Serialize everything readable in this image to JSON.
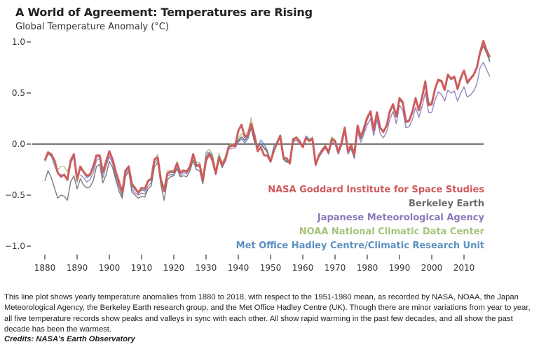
{
  "chart_data": {
    "type": "line",
    "title": "A World of Agreement: Temperatures are Rising",
    "ylabel": "Global Temperature Anomaly (°C)",
    "xlabel": "",
    "xlim": [
      1880,
      2018
    ],
    "ylim": [
      -1.0,
      1.0
    ],
    "yticks": [
      1.0,
      0.5,
      0.0,
      -0.5,
      -1.0
    ],
    "ytick_labels": [
      "1.0",
      "0.5",
      "0.0",
      "−0.5",
      "−1.0"
    ],
    "xticks": [
      1880,
      1890,
      1900,
      1910,
      1920,
      1930,
      1940,
      1950,
      1960,
      1970,
      1980,
      1990,
      2000,
      2010
    ],
    "xtick_labels": [
      "1880",
      "1890",
      "1900",
      "1910",
      "1920",
      "1930",
      "1940",
      "1950",
      "1960",
      "1970",
      "1980",
      "1990",
      "2000",
      "2010"
    ],
    "zero_line": true,
    "grid": false,
    "legend_position": "bottom-right",
    "x_start": 1880,
    "series": [
      {
        "name": "Met Office Hadley Centre/Climatic Research Unit",
        "color": "#5b8fc0",
        "values": [
          -0.17,
          -0.1,
          -0.12,
          -0.21,
          -0.29,
          -0.3,
          -0.31,
          -0.35,
          -0.19,
          -0.12,
          -0.37,
          -0.24,
          -0.28,
          -0.33,
          -0.31,
          -0.24,
          -0.13,
          -0.12,
          -0.29,
          -0.19,
          -0.09,
          -0.16,
          -0.3,
          -0.39,
          -0.48,
          -0.29,
          -0.23,
          -0.41,
          -0.45,
          -0.48,
          -0.45,
          -0.46,
          -0.37,
          -0.35,
          -0.16,
          -0.13,
          -0.36,
          -0.44,
          -0.29,
          -0.28,
          -0.28,
          -0.19,
          -0.29,
          -0.26,
          -0.28,
          -0.22,
          -0.11,
          -0.21,
          -0.21,
          -0.36,
          -0.09,
          -0.08,
          -0.11,
          -0.28,
          -0.12,
          -0.21,
          -0.15,
          -0.03,
          -0.02,
          -0.02,
          0.04,
          0.07,
          0.03,
          0.07,
          0.17,
          0.03,
          -0.03,
          0.04,
          0.0,
          -0.06,
          -0.16,
          -0.02,
          0.02,
          0.09,
          -0.13,
          -0.17,
          -0.15,
          0.05,
          0.06,
          0.02,
          -0.01,
          0.08,
          0.05,
          0.06,
          -0.2,
          -0.11,
          -0.06,
          -0.02,
          -0.08,
          0.05,
          0.03,
          -0.08,
          0.01,
          0.16,
          -0.07,
          -0.01,
          -0.1,
          0.18,
          0.07,
          0.16,
          0.26,
          0.32,
          0.14,
          0.31,
          0.16,
          0.12,
          0.18,
          0.32,
          0.39,
          0.27,
          0.45,
          0.4,
          0.22,
          0.23,
          0.31,
          0.45,
          0.33,
          0.46,
          0.61,
          0.38,
          0.39,
          0.54,
          0.63,
          0.62,
          0.53,
          0.68,
          0.64,
          0.66,
          0.54,
          0.63,
          0.72,
          0.61,
          0.65,
          0.68,
          0.75,
          0.9,
          0.99,
          0.91,
          0.82
        ]
      },
      {
        "name": "NOAA National Climatic Data Center",
        "color": "#a6c27a",
        "values": [
          -0.15,
          -0.09,
          -0.11,
          -0.19,
          -0.25,
          -0.22,
          -0.22,
          -0.27,
          -0.17,
          -0.11,
          -0.35,
          -0.23,
          -0.28,
          -0.31,
          -0.29,
          -0.23,
          -0.12,
          -0.11,
          -0.27,
          -0.17,
          -0.08,
          -0.15,
          -0.29,
          -0.38,
          -0.45,
          -0.27,
          -0.21,
          -0.39,
          -0.43,
          -0.46,
          -0.42,
          -0.44,
          -0.36,
          -0.34,
          -0.15,
          -0.1,
          -0.33,
          -0.42,
          -0.26,
          -0.26,
          -0.26,
          -0.17,
          -0.27,
          -0.25,
          -0.26,
          -0.21,
          -0.09,
          -0.18,
          -0.18,
          -0.32,
          -0.08,
          -0.05,
          -0.1,
          -0.26,
          -0.09,
          -0.18,
          -0.12,
          -0.01,
          0.0,
          -0.01,
          0.06,
          0.1,
          0.09,
          0.12,
          0.26,
          0.08,
          -0.03,
          0.0,
          -0.04,
          -0.07,
          -0.15,
          -0.05,
          0.01,
          0.09,
          -0.13,
          -0.15,
          -0.17,
          0.03,
          0.08,
          0.03,
          -0.02,
          0.06,
          0.04,
          0.07,
          -0.19,
          -0.1,
          -0.05,
          -0.01,
          -0.07,
          0.07,
          0.04,
          -0.07,
          0.02,
          0.17,
          -0.06,
          -0.01,
          -0.09,
          0.17,
          0.06,
          0.17,
          0.27,
          0.33,
          0.14,
          0.31,
          0.16,
          0.12,
          0.19,
          0.34,
          0.4,
          0.29,
          0.45,
          0.42,
          0.23,
          0.24,
          0.32,
          0.46,
          0.35,
          0.48,
          0.63,
          0.4,
          0.42,
          0.54,
          0.63,
          0.62,
          0.54,
          0.68,
          0.64,
          0.66,
          0.54,
          0.64,
          0.72,
          0.61,
          0.65,
          0.68,
          0.75,
          0.91,
          0.99,
          0.92,
          0.8
        ]
      },
      {
        "name": "Japanese Meteorological Agency",
        "color": "#8b78b8",
        "values": [
          null,
          null,
          null,
          null,
          null,
          null,
          null,
          null,
          null,
          null,
          null,
          -0.3,
          -0.33,
          -0.37,
          -0.35,
          -0.28,
          -0.16,
          -0.14,
          -0.33,
          -0.22,
          -0.12,
          -0.19,
          -0.33,
          -0.42,
          -0.51,
          -0.32,
          -0.26,
          -0.44,
          -0.48,
          -0.5,
          -0.48,
          -0.49,
          -0.41,
          -0.38,
          -0.19,
          -0.15,
          -0.38,
          -0.46,
          -0.31,
          -0.3,
          -0.3,
          -0.21,
          -0.31,
          -0.28,
          -0.29,
          -0.24,
          -0.12,
          -0.22,
          -0.22,
          -0.37,
          -0.11,
          -0.09,
          -0.12,
          -0.29,
          -0.14,
          -0.22,
          -0.17,
          -0.05,
          -0.04,
          -0.04,
          0.02,
          0.05,
          0.01,
          0.05,
          0.16,
          0.02,
          -0.04,
          0.01,
          -0.03,
          -0.07,
          -0.17,
          -0.05,
          0.0,
          0.07,
          -0.15,
          -0.18,
          -0.17,
          0.02,
          0.04,
          0.0,
          -0.03,
          0.05,
          0.03,
          0.04,
          -0.21,
          -0.13,
          -0.08,
          -0.04,
          -0.1,
          0.02,
          0.0,
          -0.1,
          -0.02,
          0.12,
          -0.1,
          -0.05,
          -0.14,
          0.12,
          0.02,
          0.1,
          0.19,
          0.25,
          0.08,
          0.24,
          0.1,
          0.06,
          0.12,
          0.24,
          0.32,
          0.2,
          0.38,
          0.33,
          0.16,
          0.17,
          0.24,
          0.36,
          0.26,
          0.37,
          0.51,
          0.31,
          0.31,
          0.43,
          0.51,
          0.49,
          0.42,
          0.53,
          0.5,
          0.52,
          0.42,
          0.5,
          0.56,
          0.46,
          0.48,
          0.52,
          0.59,
          0.75,
          0.8,
          0.73,
          0.66
        ]
      },
      {
        "name": "Berkeley Earth",
        "color": "#6b6b6b",
        "values": [
          -0.36,
          -0.26,
          -0.33,
          -0.43,
          -0.53,
          -0.5,
          -0.51,
          -0.55,
          -0.37,
          -0.31,
          -0.44,
          -0.34,
          -0.4,
          -0.43,
          -0.42,
          -0.36,
          -0.22,
          -0.2,
          -0.38,
          -0.3,
          -0.17,
          -0.23,
          -0.35,
          -0.46,
          -0.53,
          -0.32,
          -0.26,
          -0.47,
          -0.5,
          -0.53,
          -0.51,
          -0.52,
          -0.44,
          -0.41,
          -0.22,
          -0.18,
          -0.4,
          -0.55,
          -0.35,
          -0.32,
          -0.31,
          -0.24,
          -0.32,
          -0.31,
          -0.32,
          -0.26,
          -0.16,
          -0.25,
          -0.26,
          -0.39,
          -0.13,
          -0.1,
          -0.14,
          -0.3,
          -0.14,
          -0.23,
          -0.16,
          -0.02,
          -0.02,
          -0.02,
          0.03,
          0.07,
          0.04,
          0.08,
          0.16,
          0.03,
          -0.03,
          0.0,
          -0.04,
          -0.08,
          -0.18,
          -0.05,
          0.0,
          0.08,
          -0.15,
          -0.17,
          -0.18,
          0.03,
          0.06,
          0.02,
          -0.03,
          0.06,
          0.03,
          0.06,
          -0.21,
          -0.12,
          -0.07,
          -0.03,
          -0.09,
          0.04,
          0.02,
          -0.09,
          0.0,
          0.15,
          -0.08,
          -0.03,
          -0.13,
          0.15,
          0.05,
          0.13,
          0.24,
          0.31,
          0.13,
          0.29,
          0.15,
          0.11,
          0.18,
          0.31,
          0.38,
          0.27,
          0.43,
          0.4,
          0.21,
          0.22,
          0.3,
          0.44,
          0.33,
          0.46,
          0.61,
          0.39,
          0.4,
          0.53,
          0.62,
          0.61,
          0.53,
          0.67,
          0.63,
          0.65,
          0.53,
          0.63,
          0.71,
          0.59,
          0.63,
          0.67,
          0.74,
          0.88,
          0.96,
          0.89,
          0.81
        ]
      },
      {
        "name": "NASA Goddard Institute for Space Studies",
        "color": "#d0595a",
        "values": [
          -0.16,
          -0.08,
          -0.1,
          -0.16,
          -0.28,
          -0.32,
          -0.3,
          -0.35,
          -0.16,
          -0.1,
          -0.35,
          -0.22,
          -0.27,
          -0.31,
          -0.3,
          -0.22,
          -0.11,
          -0.11,
          -0.27,
          -0.17,
          -0.07,
          -0.15,
          -0.27,
          -0.37,
          -0.47,
          -0.26,
          -0.22,
          -0.39,
          -0.43,
          -0.48,
          -0.43,
          -0.44,
          -0.36,
          -0.34,
          -0.15,
          -0.13,
          -0.35,
          -0.46,
          -0.29,
          -0.27,
          -0.27,
          -0.19,
          -0.28,
          -0.26,
          -0.27,
          -0.22,
          -0.1,
          -0.21,
          -0.2,
          -0.36,
          -0.16,
          -0.1,
          -0.16,
          -0.29,
          -0.13,
          -0.2,
          -0.15,
          -0.03,
          -0.01,
          -0.02,
          0.13,
          0.19,
          0.07,
          0.09,
          0.2,
          0.09,
          -0.07,
          -0.03,
          -0.11,
          -0.11,
          -0.17,
          -0.07,
          0.01,
          0.08,
          -0.13,
          -0.14,
          -0.19,
          0.05,
          0.06,
          0.03,
          -0.03,
          0.06,
          0.03,
          0.05,
          -0.2,
          -0.11,
          -0.06,
          -0.02,
          -0.08,
          0.05,
          0.03,
          -0.08,
          0.01,
          0.16,
          -0.07,
          -0.01,
          -0.1,
          0.18,
          0.07,
          0.16,
          0.26,
          0.32,
          0.14,
          0.31,
          0.16,
          0.12,
          0.18,
          0.32,
          0.39,
          0.27,
          0.45,
          0.41,
          0.22,
          0.23,
          0.32,
          0.45,
          0.33,
          0.46,
          0.61,
          0.38,
          0.39,
          0.54,
          0.63,
          0.62,
          0.53,
          0.68,
          0.64,
          0.66,
          0.54,
          0.65,
          0.72,
          0.61,
          0.64,
          0.68,
          0.75,
          0.9,
          1.01,
          0.92,
          0.85
        ]
      }
    ]
  },
  "legend": [
    {
      "label": "NASA Goddard Institute for Space Studies",
      "color": "#d0595a"
    },
    {
      "label": "Berkeley Earth",
      "color": "#6b6b6b"
    },
    {
      "label": "Japanese Meteorological Agency",
      "color": "#8b78b8"
    },
    {
      "label": "NOAA National Climatic Data Center",
      "color": "#a6c27a"
    },
    {
      "label": "Met Office Hadley Centre/Climatic Research Unit",
      "color": "#5b8fc0"
    }
  ],
  "caption": "This line plot shows yearly temperature anomalies from 1880 to 2018, with respect to the 1951-1980 mean, as recorded by NASA, NOAA, the Japan Meteorological Agency, the Berkeley Earth research group, and the Met Office Hadley Centre (UK). Though there are minor variations from year to year, all five temperature records show peaks and valleys in sync with each other. All show rapid warming in the past few decades, and all show the past decade has been the warmest.",
  "credits": "Credits: NASA's Earth Observatory"
}
